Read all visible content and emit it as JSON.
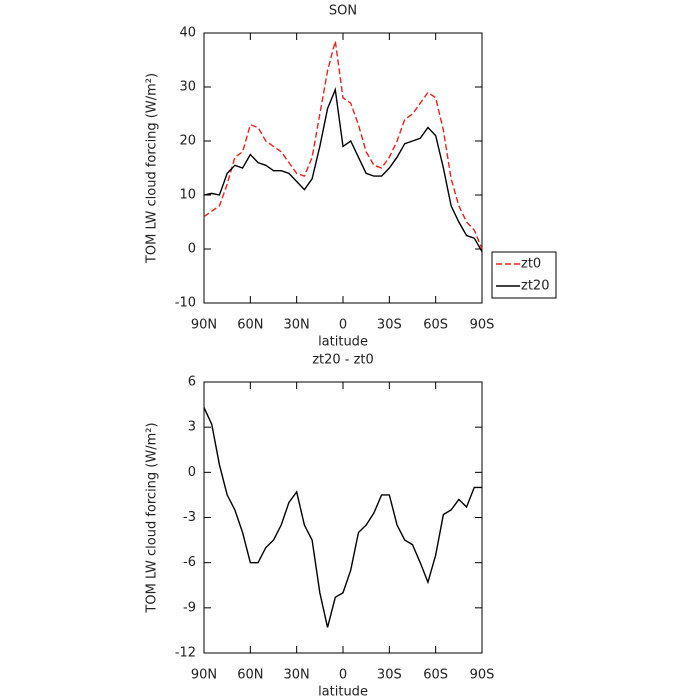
{
  "chart_data": [
    {
      "type": "line",
      "title": "SON",
      "x_label": "latitude",
      "y_label": "TOM LW cloud forcing (W/m²)",
      "x": [
        90,
        85,
        80,
        75,
        70,
        65,
        60,
        55,
        50,
        45,
        40,
        35,
        30,
        25,
        20,
        15,
        10,
        5,
        0,
        -5,
        -10,
        -15,
        -20,
        -25,
        -30,
        -35,
        -40,
        -45,
        -50,
        -55,
        -60,
        -65,
        -70,
        -75,
        -80,
        -85,
        -90
      ],
      "series": [
        {
          "name": "zt0",
          "color": "#e8221e",
          "linestyle": "dashed",
          "values": [
            6,
            7,
            8,
            12,
            17,
            18,
            23,
            22.5,
            20,
            19,
            18,
            16,
            14,
            13.5,
            17,
            25,
            33,
            38.5,
            28,
            27,
            23,
            18,
            15.5,
            15,
            17,
            20,
            24,
            25,
            27,
            29,
            28,
            22,
            13,
            8,
            5,
            3.5,
            0
          ]
        },
        {
          "name": "zt20",
          "color": "#000000",
          "linestyle": "solid",
          "values": [
            10,
            10.3,
            10,
            14,
            15.5,
            15,
            17.5,
            16,
            15.5,
            14.5,
            14.5,
            14,
            12.5,
            11,
            13,
            19,
            26,
            29.5,
            19,
            20,
            17,
            14,
            13.5,
            13.5,
            15,
            17,
            19.5,
            20,
            20.5,
            22.5,
            21,
            15,
            8,
            5,
            2.5,
            2,
            -0.5
          ]
        }
      ],
      "xlim": [
        90,
        -90
      ],
      "xticks": [
        {
          "value": 90,
          "label": "90N"
        },
        {
          "value": 60,
          "label": "60N"
        },
        {
          "value": 30,
          "label": "30N"
        },
        0,
        {
          "value": -30,
          "label": "30S"
        },
        {
          "value": -60,
          "label": "60S"
        },
        {
          "value": -90,
          "label": "90S"
        }
      ],
      "ylim": [
        -10,
        40
      ],
      "yticks": [
        -10,
        0,
        10,
        20,
        30,
        40
      ],
      "legend": "right"
    },
    {
      "type": "line",
      "title": "zt20 - zt0",
      "x_label": "latitude",
      "y_label": "TOM LW cloud forcing (W/m²)",
      "x": [
        90,
        85,
        80,
        75,
        70,
        65,
        60,
        55,
        50,
        45,
        40,
        35,
        30,
        25,
        20,
        15,
        10,
        5,
        0,
        -5,
        -10,
        -15,
        -20,
        -25,
        -30,
        -35,
        -40,
        -45,
        -50,
        -55,
        -60,
        -65,
        -70,
        -75,
        -80,
        -85,
        -90
      ],
      "series": [
        {
          "color": "#000000",
          "linestyle": "solid",
          "values": [
            4.3,
            3.2,
            0.5,
            -1.5,
            -2.5,
            -4,
            -6,
            -6,
            -5,
            -4.5,
            -3.5,
            -2,
            -1.3,
            -3.5,
            -4.5,
            -8,
            -10.3,
            -8.3,
            -8,
            -6.5,
            -4,
            -3.5,
            -2.7,
            -1.5,
            -1.5,
            -3.5,
            -4.5,
            -4.8,
            -6,
            -7.3,
            -5.5,
            -2.8,
            -2.5,
            -1.8,
            -2.3,
            -1,
            -1
          ]
        }
      ],
      "xlim": [
        90,
        -90
      ],
      "xticks": [
        {
          "value": 90,
          "label": "90N"
        },
        {
          "value": 60,
          "label": "60N"
        },
        {
          "value": 30,
          "label": "30N"
        },
        0,
        {
          "value": -30,
          "label": "30S"
        },
        {
          "value": -60,
          "label": "60S"
        },
        {
          "value": -90,
          "label": "90S"
        }
      ],
      "ylim": [
        -12,
        6
      ],
      "yticks": [
        -12,
        -9,
        -6,
        -3,
        0,
        3,
        6
      ]
    }
  ]
}
